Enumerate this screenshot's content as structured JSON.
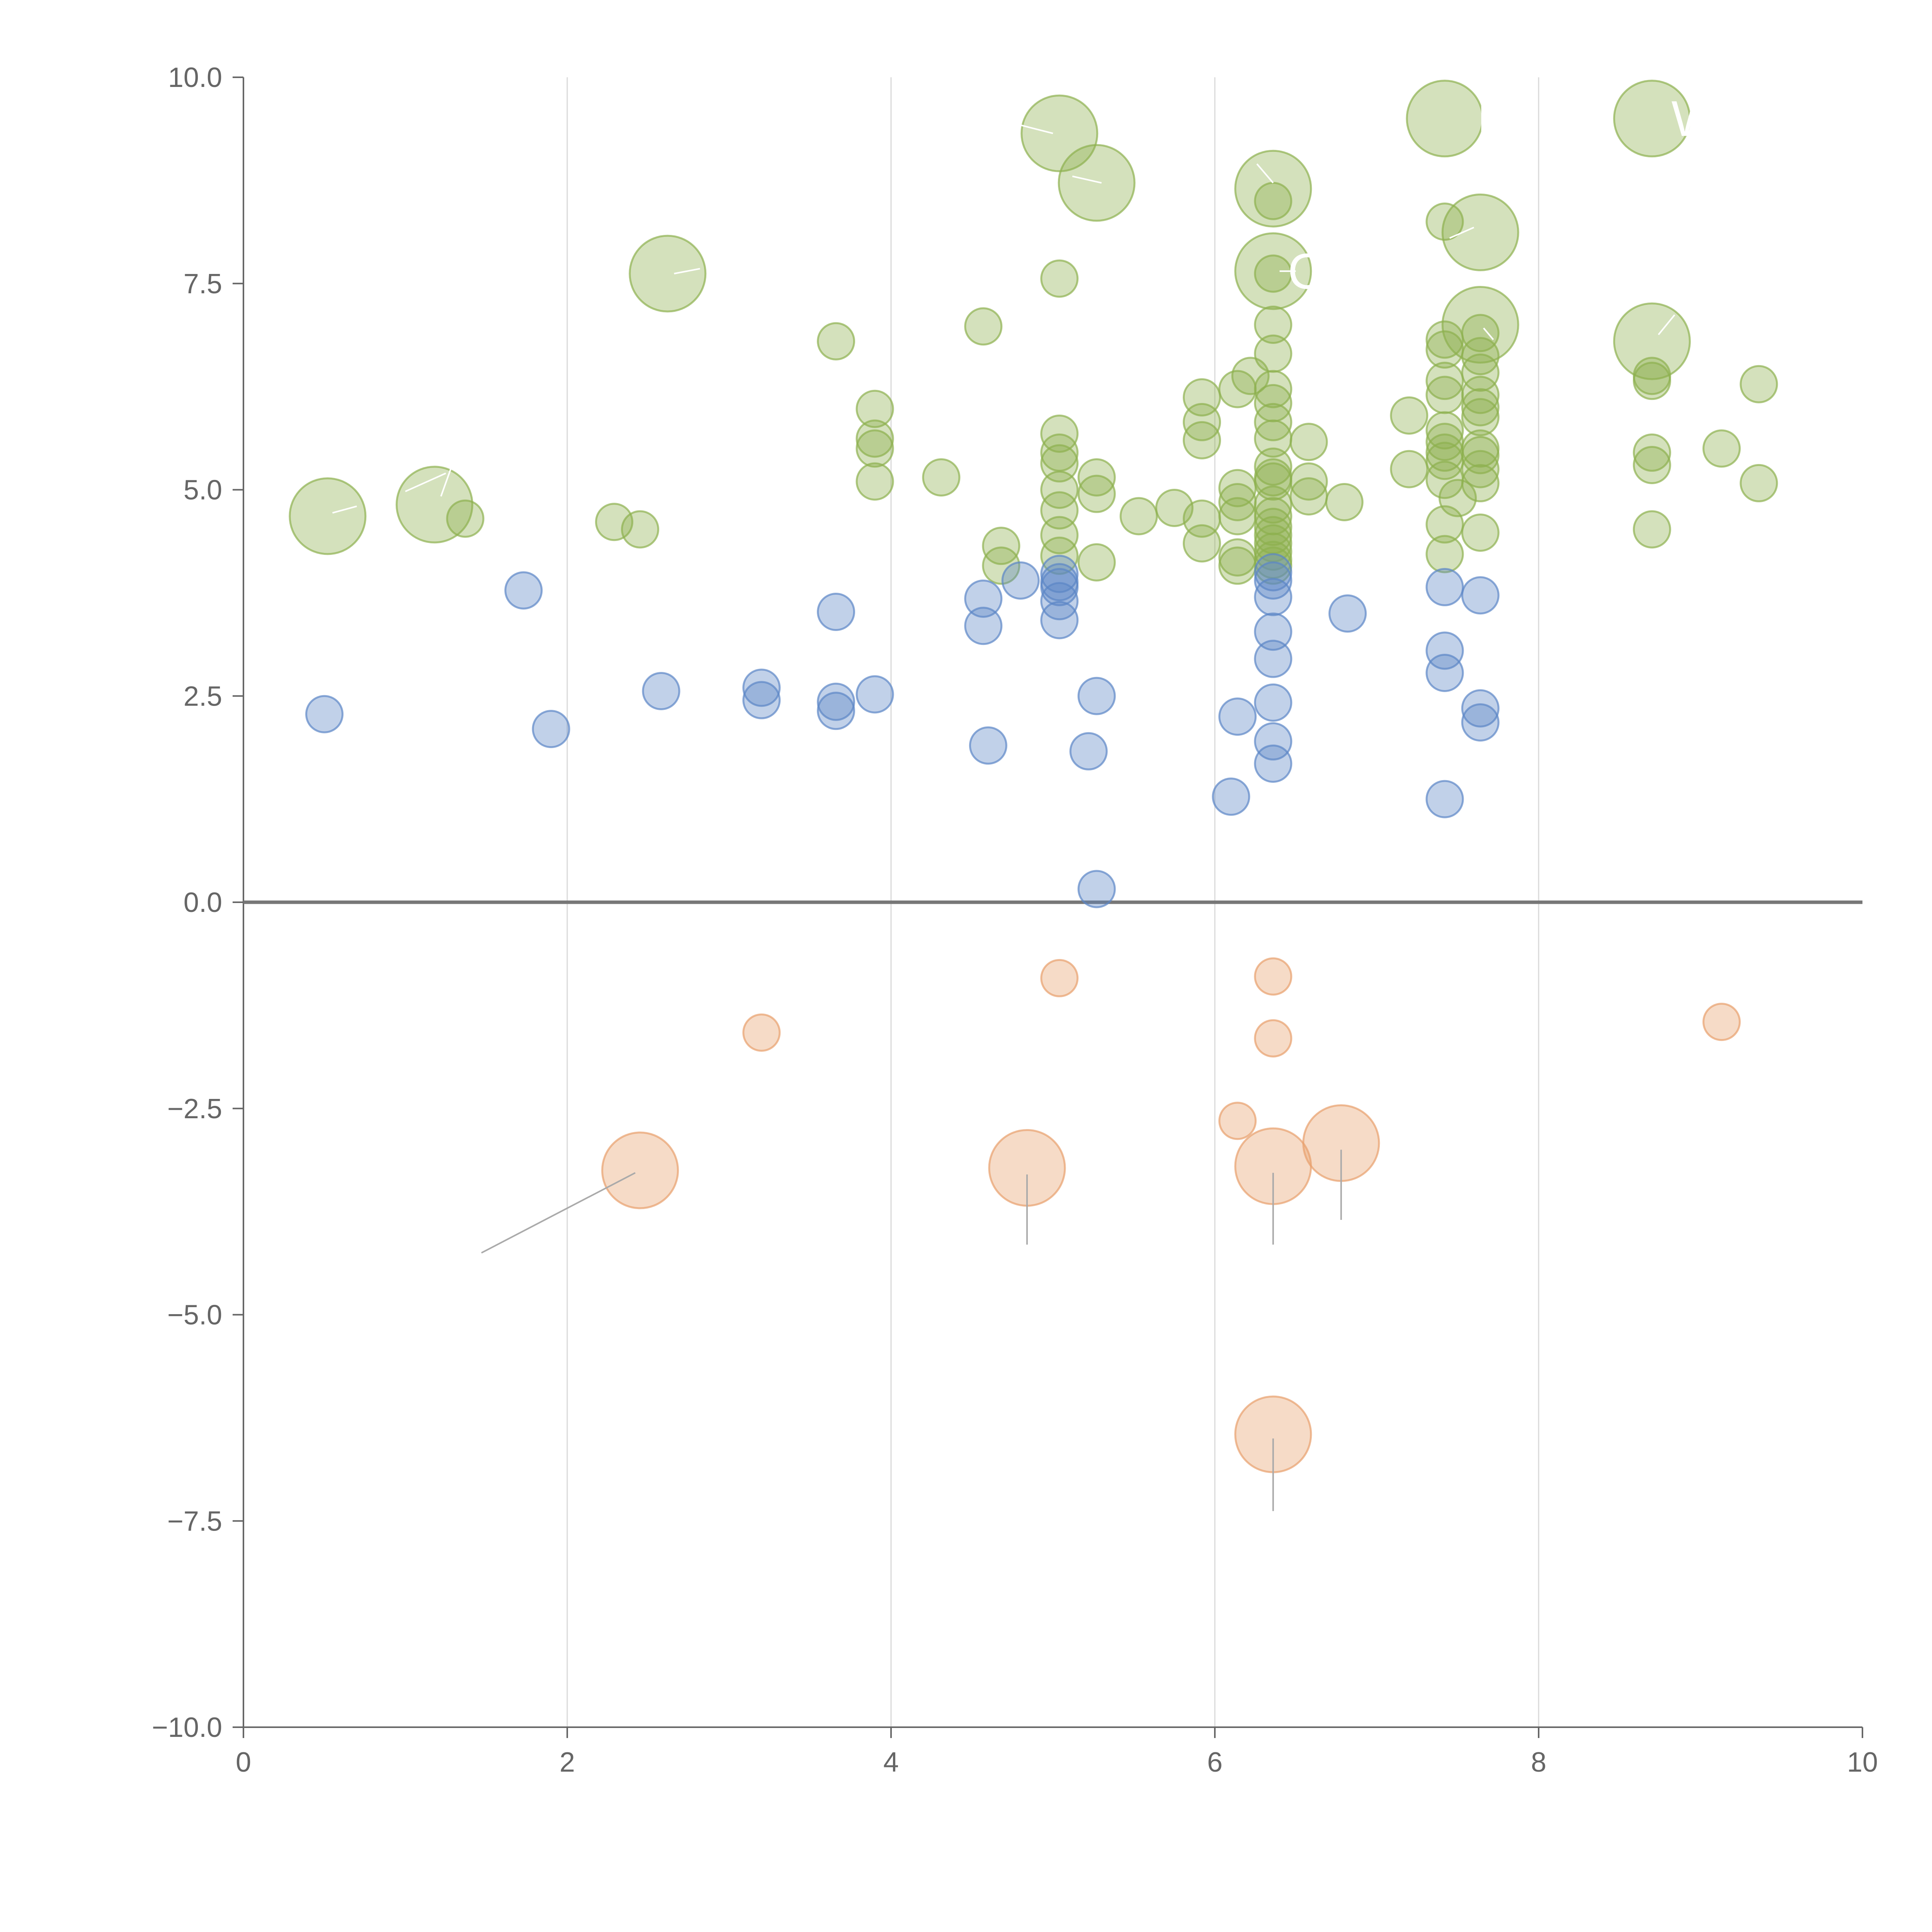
{
  "chart_data": {
    "type": "scatter",
    "title": "",
    "xlabel": "",
    "ylabel": "",
    "xlim": [
      0,
      10
    ],
    "ylim": [
      -10,
      10
    ],
    "x_ticks": [
      0,
      2,
      4,
      6,
      8,
      10
    ],
    "x_tick_labels": [
      "0",
      "2",
      "4",
      "6",
      "8",
      "10"
    ],
    "y_ticks": [
      10,
      7.5,
      5,
      2.5,
      0,
      -2.5,
      -5,
      -7.5,
      -10
    ],
    "y_tick_labels": [
      "10.0",
      "7.5",
      "5.0",
      "2.5",
      "0.0",
      "−2.5",
      "−5.0",
      "−7.5",
      "−10.0"
    ],
    "grid": "vertical",
    "zero_line": true,
    "series": [
      {
        "name": "green",
        "color": "#8db04f",
        "points": [
          {
            "x": 0.52,
            "y": 4.68,
            "size": "large"
          },
          {
            "x": 1.18,
            "y": 4.82,
            "size": "large"
          },
          {
            "x": 1.37,
            "y": 4.65,
            "size": "small"
          },
          {
            "x": 2.29,
            "y": 4.61,
            "size": "small"
          },
          {
            "x": 2.45,
            "y": 4.52,
            "size": "small"
          },
          {
            "x": 2.62,
            "y": 7.62,
            "size": "large"
          },
          {
            "x": 3.66,
            "y": 6.8,
            "size": "small"
          },
          {
            "x": 3.9,
            "y": 5.98,
            "size": "small"
          },
          {
            "x": 3.9,
            "y": 5.62,
            "size": "small"
          },
          {
            "x": 3.9,
            "y": 5.5,
            "size": "small"
          },
          {
            "x": 3.9,
            "y": 5.1,
            "size": "small"
          },
          {
            "x": 4.31,
            "y": 5.15,
            "size": "small"
          },
          {
            "x": 4.57,
            "y": 6.98,
            "size": "small"
          },
          {
            "x": 4.68,
            "y": 4.32,
            "size": "small"
          },
          {
            "x": 4.68,
            "y": 4.08,
            "size": "small"
          },
          {
            "x": 5.04,
            "y": 9.32,
            "size": "large"
          },
          {
            "x": 5.04,
            "y": 7.56,
            "size": "small"
          },
          {
            "x": 5.04,
            "y": 5.68,
            "size": "small"
          },
          {
            "x": 5.04,
            "y": 5.45,
            "size": "small"
          },
          {
            "x": 5.04,
            "y": 5.32,
            "size": "small"
          },
          {
            "x": 5.04,
            "y": 5.0,
            "size": "small"
          },
          {
            "x": 5.04,
            "y": 4.75,
            "size": "small"
          },
          {
            "x": 5.04,
            "y": 4.45,
            "size": "small"
          },
          {
            "x": 5.04,
            "y": 4.2,
            "size": "small"
          },
          {
            "x": 5.27,
            "y": 8.72,
            "size": "large"
          },
          {
            "x": 5.27,
            "y": 5.15,
            "size": "small"
          },
          {
            "x": 5.27,
            "y": 4.95,
            "size": "small"
          },
          {
            "x": 5.27,
            "y": 4.12,
            "size": "small"
          },
          {
            "x": 5.53,
            "y": 4.68,
            "size": "small"
          },
          {
            "x": 5.75,
            "y": 4.78,
            "size": "small"
          },
          {
            "x": 5.92,
            "y": 6.12,
            "size": "small"
          },
          {
            "x": 5.92,
            "y": 5.82,
            "size": "small"
          },
          {
            "x": 5.92,
            "y": 5.6,
            "size": "small"
          },
          {
            "x": 5.92,
            "y": 4.65,
            "size": "small"
          },
          {
            "x": 5.92,
            "y": 4.35,
            "size": "small"
          },
          {
            "x": 6.14,
            "y": 6.22,
            "size": "small"
          },
          {
            "x": 6.14,
            "y": 5.02,
            "size": "small"
          },
          {
            "x": 6.14,
            "y": 4.85,
            "size": "small"
          },
          {
            "x": 6.14,
            "y": 4.68,
            "size": "small"
          },
          {
            "x": 6.14,
            "y": 4.18,
            "size": "small"
          },
          {
            "x": 6.14,
            "y": 4.08,
            "size": "small"
          },
          {
            "x": 6.22,
            "y": 6.38,
            "size": "small"
          },
          {
            "x": 6.36,
            "y": 8.65,
            "size": "large"
          },
          {
            "x": 6.36,
            "y": 8.5,
            "size": "small"
          },
          {
            "x": 6.36,
            "y": 7.65,
            "size": "large"
          },
          {
            "x": 6.36,
            "y": 7.62,
            "size": "small"
          },
          {
            "x": 6.36,
            "y": 7.0,
            "size": "small"
          },
          {
            "x": 6.36,
            "y": 6.65,
            "size": "small"
          },
          {
            "x": 6.36,
            "y": 6.22,
            "size": "small"
          },
          {
            "x": 6.36,
            "y": 6.05,
            "size": "small"
          },
          {
            "x": 6.36,
            "y": 5.82,
            "size": "small"
          },
          {
            "x": 6.36,
            "y": 5.62,
            "size": "small"
          },
          {
            "x": 6.36,
            "y": 5.28,
            "size": "small"
          },
          {
            "x": 6.36,
            "y": 5.15,
            "size": "small"
          },
          {
            "x": 6.36,
            "y": 5.1,
            "size": "small"
          },
          {
            "x": 6.36,
            "y": 4.82,
            "size": "small"
          },
          {
            "x": 6.36,
            "y": 4.68,
            "size": "small"
          },
          {
            "x": 6.36,
            "y": 4.55,
            "size": "small"
          },
          {
            "x": 6.36,
            "y": 4.45,
            "size": "small"
          },
          {
            "x": 6.36,
            "y": 4.35,
            "size": "small"
          },
          {
            "x": 6.36,
            "y": 4.25,
            "size": "small"
          },
          {
            "x": 6.36,
            "y": 4.15,
            "size": "small"
          },
          {
            "x": 6.36,
            "y": 4.08,
            "size": "small"
          },
          {
            "x": 6.58,
            "y": 5.58,
            "size": "small"
          },
          {
            "x": 6.58,
            "y": 5.1,
            "size": "small"
          },
          {
            "x": 6.58,
            "y": 4.92,
            "size": "small"
          },
          {
            "x": 6.8,
            "y": 4.85,
            "size": "small"
          },
          {
            "x": 7.2,
            "y": 5.9,
            "size": "small"
          },
          {
            "x": 7.2,
            "y": 5.25,
            "size": "small"
          },
          {
            "x": 7.42,
            "y": 9.5,
            "size": "large"
          },
          {
            "x": 7.42,
            "y": 8.25,
            "size": "small"
          },
          {
            "x": 7.42,
            "y": 6.82,
            "size": "small"
          },
          {
            "x": 7.42,
            "y": 6.7,
            "size": "small"
          },
          {
            "x": 7.42,
            "y": 6.32,
            "size": "small"
          },
          {
            "x": 7.42,
            "y": 6.15,
            "size": "small"
          },
          {
            "x": 7.42,
            "y": 5.72,
            "size": "small"
          },
          {
            "x": 7.42,
            "y": 5.58,
            "size": "small"
          },
          {
            "x": 7.42,
            "y": 5.45,
            "size": "small"
          },
          {
            "x": 7.42,
            "y": 5.35,
            "size": "small"
          },
          {
            "x": 7.42,
            "y": 5.12,
            "size": "small"
          },
          {
            "x": 7.42,
            "y": 4.58,
            "size": "small"
          },
          {
            "x": 7.42,
            "y": 4.22,
            "size": "small"
          },
          {
            "x": 7.5,
            "y": 4.9,
            "size": "small"
          },
          {
            "x": 7.64,
            "y": 8.12,
            "size": "large"
          },
          {
            "x": 7.64,
            "y": 7.0,
            "size": "large"
          },
          {
            "x": 7.64,
            "y": 6.9,
            "size": "small"
          },
          {
            "x": 7.64,
            "y": 6.62,
            "size": "small"
          },
          {
            "x": 7.64,
            "y": 6.42,
            "size": "small"
          },
          {
            "x": 7.64,
            "y": 6.15,
            "size": "small"
          },
          {
            "x": 7.64,
            "y": 6.0,
            "size": "small"
          },
          {
            "x": 7.64,
            "y": 5.88,
            "size": "small"
          },
          {
            "x": 7.64,
            "y": 5.5,
            "size": "small"
          },
          {
            "x": 7.64,
            "y": 5.42,
            "size": "small"
          },
          {
            "x": 7.64,
            "y": 5.25,
            "size": "small"
          },
          {
            "x": 7.64,
            "y": 5.08,
            "size": "small"
          },
          {
            "x": 7.64,
            "y": 4.48,
            "size": "small"
          },
          {
            "x": 8.7,
            "y": 9.5,
            "size": "large"
          },
          {
            "x": 8.7,
            "y": 6.8,
            "size": "large"
          },
          {
            "x": 8.7,
            "y": 6.38,
            "size": "small"
          },
          {
            "x": 8.7,
            "y": 6.32,
            "size": "small"
          },
          {
            "x": 8.7,
            "y": 5.45,
            "size": "small"
          },
          {
            "x": 8.7,
            "y": 5.3,
            "size": "small"
          },
          {
            "x": 8.7,
            "y": 4.52,
            "size": "small"
          },
          {
            "x": 9.13,
            "y": 5.5,
            "size": "small"
          },
          {
            "x": 9.36,
            "y": 6.28,
            "size": "small"
          },
          {
            "x": 9.36,
            "y": 5.08,
            "size": "small"
          }
        ]
      },
      {
        "name": "blue",
        "color": "#5b86c6",
        "points": [
          {
            "x": 0.5,
            "y": 2.28,
            "size": "small"
          },
          {
            "x": 1.73,
            "y": 3.78,
            "size": "small"
          },
          {
            "x": 1.9,
            "y": 2.1,
            "size": "small"
          },
          {
            "x": 2.58,
            "y": 2.56,
            "size": "small"
          },
          {
            "x": 3.2,
            "y": 2.6,
            "size": "small"
          },
          {
            "x": 3.2,
            "y": 2.45,
            "size": "small"
          },
          {
            "x": 3.66,
            "y": 3.52,
            "size": "small"
          },
          {
            "x": 3.66,
            "y": 2.43,
            "size": "small"
          },
          {
            "x": 3.66,
            "y": 2.32,
            "size": "small"
          },
          {
            "x": 3.9,
            "y": 2.52,
            "size": "small"
          },
          {
            "x": 4.57,
            "y": 3.68,
            "size": "small"
          },
          {
            "x": 4.57,
            "y": 3.35,
            "size": "small"
          },
          {
            "x": 4.6,
            "y": 1.9,
            "size": "small"
          },
          {
            "x": 4.8,
            "y": 3.9,
            "size": "small"
          },
          {
            "x": 5.04,
            "y": 3.98,
            "size": "small"
          },
          {
            "x": 5.04,
            "y": 3.88,
            "size": "small"
          },
          {
            "x": 5.04,
            "y": 3.82,
            "size": "small"
          },
          {
            "x": 5.04,
            "y": 3.65,
            "size": "small"
          },
          {
            "x": 5.04,
            "y": 3.42,
            "size": "small"
          },
          {
            "x": 5.22,
            "y": 1.83,
            "size": "small"
          },
          {
            "x": 5.27,
            "y": 2.5,
            "size": "small"
          },
          {
            "x": 5.27,
            "y": 0.16,
            "size": "small"
          },
          {
            "x": 6.1,
            "y": 1.28,
            "size": "small"
          },
          {
            "x": 6.14,
            "y": 2.25,
            "size": "small"
          },
          {
            "x": 6.36,
            "y": 4.0,
            "size": "small"
          },
          {
            "x": 6.36,
            "y": 3.9,
            "size": "small"
          },
          {
            "x": 6.36,
            "y": 3.7,
            "size": "small"
          },
          {
            "x": 6.36,
            "y": 3.28,
            "size": "small"
          },
          {
            "x": 6.36,
            "y": 2.95,
            "size": "small"
          },
          {
            "x": 6.36,
            "y": 2.42,
            "size": "small"
          },
          {
            "x": 6.36,
            "y": 1.95,
            "size": "small"
          },
          {
            "x": 6.36,
            "y": 1.68,
            "size": "small"
          },
          {
            "x": 6.82,
            "y": 3.5,
            "size": "small"
          },
          {
            "x": 7.42,
            "y": 3.82,
            "size": "small"
          },
          {
            "x": 7.42,
            "y": 3.05,
            "size": "small"
          },
          {
            "x": 7.42,
            "y": 2.78,
            "size": "small"
          },
          {
            "x": 7.42,
            "y": 1.25,
            "size": "small"
          },
          {
            "x": 7.64,
            "y": 3.72,
            "size": "small"
          },
          {
            "x": 7.64,
            "y": 2.35,
            "size": "small"
          },
          {
            "x": 7.64,
            "y": 2.18,
            "size": "small"
          }
        ]
      },
      {
        "name": "orange",
        "color": "#e8a06c",
        "points": [
          {
            "x": 2.45,
            "y": -3.25,
            "size": "large"
          },
          {
            "x": 3.2,
            "y": -1.58,
            "size": "small"
          },
          {
            "x": 4.84,
            "y": -3.22,
            "size": "large"
          },
          {
            "x": 5.04,
            "y": -0.92,
            "size": "small"
          },
          {
            "x": 6.14,
            "y": -2.65,
            "size": "small"
          },
          {
            "x": 6.36,
            "y": -0.9,
            "size": "small"
          },
          {
            "x": 6.36,
            "y": -1.65,
            "size": "small"
          },
          {
            "x": 6.36,
            "y": -3.2,
            "size": "large"
          },
          {
            "x": 6.36,
            "y": -6.45,
            "size": "large"
          },
          {
            "x": 6.78,
            "y": -2.92,
            "size": "large"
          },
          {
            "x": 9.13,
            "y": -1.45,
            "size": "small"
          }
        ]
      }
    ],
    "leader_lines": [
      {
        "from": [
          2.42,
          -3.28
        ],
        "to": [
          1.47,
          -4.25
        ],
        "color": "#aaaaaa"
      },
      {
        "from": [
          4.84,
          -3.3
        ],
        "to": [
          4.84,
          -4.15
        ],
        "color": "#aaaaaa"
      },
      {
        "from": [
          6.36,
          -3.28
        ],
        "to": [
          6.36,
          -4.15
        ],
        "color": "#aaaaaa"
      },
      {
        "from": [
          6.78,
          -3.0
        ],
        "to": [
          6.78,
          -3.85
        ],
        "color": "#aaaaaa"
      },
      {
        "from": [
          6.36,
          -6.5
        ],
        "to": [
          6.36,
          -7.38
        ],
        "color": "#aaaaaa"
      },
      {
        "from": [
          0.55,
          4.72
        ],
        "to": [
          0.7,
          4.8
        ],
        "color": "#ffffff"
      },
      {
        "from": [
          1.22,
          4.92
        ],
        "to": [
          1.28,
          5.25
        ],
        "color": "#ffffff"
      },
      {
        "from": [
          1.0,
          4.98
        ],
        "to": [
          1.25,
          5.2
        ],
        "color": "#ffffff"
      },
      {
        "from": [
          2.66,
          7.62
        ],
        "to": [
          2.82,
          7.68
        ],
        "color": "#ffffff"
      },
      {
        "from": [
          5.0,
          9.32
        ],
        "to": [
          4.8,
          9.42
        ],
        "color": "#ffffff"
      },
      {
        "from": [
          5.3,
          8.72
        ],
        "to": [
          5.12,
          8.8
        ],
        "color": "#ffffff"
      },
      {
        "from": [
          6.36,
          8.72
        ],
        "to": [
          6.26,
          8.95
        ],
        "color": "#ffffff"
      },
      {
        "from": [
          6.4,
          7.65
        ],
        "to": [
          6.5,
          7.65
        ],
        "color": "#ffffff"
      },
      {
        "from": [
          7.6,
          8.18
        ],
        "to": [
          7.45,
          8.05
        ],
        "color": "#ffffff"
      },
      {
        "from": [
          7.66,
          6.96
        ],
        "to": [
          7.72,
          6.82
        ],
        "color": "#ffffff"
      },
      {
        "from": [
          8.74,
          6.88
        ],
        "to": [
          8.84,
          7.12
        ],
        "color": "#ffffff"
      }
    ],
    "labels": [
      {
        "text": "N",
        "x": 7.62,
        "y": 9.5
      },
      {
        "text": "W",
        "x": 8.82,
        "y": 9.5
      },
      {
        "text": "C",
        "x": 6.45,
        "y": 7.65
      }
    ]
  }
}
